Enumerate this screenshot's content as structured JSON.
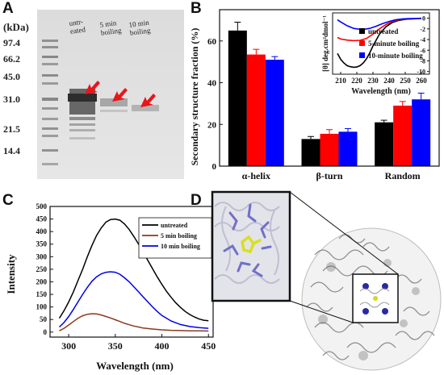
{
  "figure": {
    "panel_a": {
      "letter": "A",
      "unit_label": "(kDa)",
      "markers": [
        "97.4",
        "66.2",
        "45.0",
        "31.0",
        "21.5",
        "14.4"
      ],
      "lane_labels": [
        {
          "line1": "untr-",
          "line2": "eated"
        },
        {
          "line1": "5 min",
          "line2": "boiling"
        },
        {
          "line1": "10 min",
          "line2": "boiling"
        }
      ]
    },
    "panel_b": {
      "letter": "B"
    },
    "panel_c": {
      "letter": "C"
    },
    "panel_d": {
      "letter": "D"
    }
  },
  "chart_data": [
    {
      "type": "bar",
      "panel": "B",
      "categories": [
        "α-helix",
        "β-turn",
        "Random"
      ],
      "series": [
        {
          "name": "untreated",
          "values": [
            65,
            13,
            21
          ],
          "errors": [
            4,
            1.2,
            1
          ],
          "color": "#000000"
        },
        {
          "name": "5-minute boiling",
          "values": [
            53.5,
            15.5,
            29
          ],
          "errors": [
            2.5,
            2,
            2
          ],
          "color": "#ff0000"
        },
        {
          "name": "10-minute boiling",
          "values": [
            51,
            16.5,
            32
          ],
          "errors": [
            1.5,
            1.5,
            3
          ],
          "color": "#0000ff"
        }
      ],
      "ylabel": "Secondary structure fraction (%)",
      "ylim": [
        0,
        75
      ],
      "yticks": [
        0,
        20,
        40,
        60
      ],
      "inset": {
        "type": "line",
        "xlabel": "Wavelength (nm)",
        "ylabel": "[θ] deg.cm²dmol⁻¹",
        "xlim": [
          205,
          265
        ],
        "xticks": [
          210,
          220,
          230,
          240,
          250,
          260
        ],
        "ylim": [
          -10.5,
          1
        ],
        "yticks": [
          0,
          -2,
          -4,
          -6,
          -8,
          -10
        ],
        "series": [
          {
            "name": "untreated",
            "color": "#000000",
            "x": [
              208,
              210,
              212,
              214,
              216,
              218,
              220,
              222,
              224,
              226,
              228,
              230,
              234,
              238,
              242,
              246,
              250,
              255,
              260
            ],
            "y": [
              -6.6,
              -7.7,
              -8.4,
              -8.9,
              -9.1,
              -9.2,
              -9.15,
              -8.9,
              -8.4,
              -7.6,
              -6.5,
              -5.2,
              -3.0,
              -1.6,
              -0.8,
              -0.4,
              -0.2,
              -0.1,
              -0.05
            ]
          },
          {
            "name": "5-minute boiling",
            "color": "#ff0000",
            "x": [
              208,
              210,
              214,
              218,
              222,
              226,
              230,
              234,
              238,
              242,
              246,
              250,
              255,
              260
            ],
            "y": [
              -3.6,
              -3.9,
              -4.1,
              -4.2,
              -4.15,
              -3.8,
              -3.0,
              -2.0,
              -1.2,
              -0.6,
              -0.3,
              -0.15,
              -0.1,
              -0.05
            ]
          },
          {
            "name": "10-minute boiling",
            "color": "#0000ff",
            "x": [
              208,
              210,
              214,
              218,
              220,
              224,
              228,
              232,
              236,
              240,
              244,
              248,
              252,
              256,
              260
            ],
            "y": [
              -0.3,
              -0.7,
              -1.4,
              -1.9,
              -2.0,
              -2.1,
              -1.9,
              -1.5,
              -1.0,
              -0.6,
              -0.3,
              -0.15,
              -0.08,
              -0.04,
              -0.02
            ]
          }
        ]
      }
    },
    {
      "type": "line",
      "panel": "C",
      "xlabel": "Wavelength (nm)",
      "ylabel": "Intensity",
      "xlim": [
        280,
        455
      ],
      "xticks": [
        300,
        350,
        400,
        450
      ],
      "ylim": [
        -20,
        500
      ],
      "yticks": [
        0,
        50,
        100,
        150,
        200,
        250,
        300,
        350,
        400,
        450,
        500
      ],
      "series": [
        {
          "name": "untreated",
          "color": "#000000",
          "x": [
            290,
            295,
            300,
            305,
            310,
            315,
            320,
            325,
            330,
            335,
            340,
            345,
            350,
            355,
            360,
            365,
            370,
            375,
            380,
            385,
            390,
            395,
            400,
            405,
            410,
            415,
            420,
            425,
            430,
            435,
            440,
            445,
            450
          ],
          "y": [
            55,
            85,
            120,
            160,
            205,
            250,
            300,
            345,
            385,
            415,
            438,
            448,
            450,
            445,
            430,
            408,
            380,
            350,
            318,
            285,
            252,
            220,
            190,
            162,
            138,
            116,
            98,
            82,
            70,
            60,
            52,
            47,
            45
          ]
        },
        {
          "name": "5 min boiling",
          "color": "#8b3a1e",
          "x": [
            290,
            295,
            300,
            305,
            310,
            315,
            320,
            325,
            330,
            335,
            340,
            345,
            350,
            355,
            360,
            365,
            370,
            375,
            380,
            390,
            400,
            410,
            420,
            430,
            440,
            450
          ],
          "y": [
            5,
            15,
            28,
            42,
            55,
            65,
            71,
            73,
            72,
            68,
            62,
            56,
            49,
            42,
            35,
            29,
            24,
            20,
            16,
            12,
            9,
            7,
            6,
            5,
            5,
            4
          ]
        },
        {
          "name": "10 min boiling",
          "color": "#0000ee",
          "x": [
            290,
            295,
            300,
            305,
            310,
            315,
            320,
            325,
            330,
            335,
            340,
            345,
            350,
            355,
            360,
            365,
            370,
            375,
            380,
            385,
            390,
            395,
            400,
            410,
            420,
            430,
            440,
            450
          ],
          "y": [
            20,
            38,
            62,
            90,
            120,
            150,
            178,
            202,
            220,
            232,
            238,
            240,
            238,
            230,
            216,
            200,
            180,
            160,
            140,
            120,
            100,
            82,
            66,
            44,
            30,
            22,
            18,
            15
          ]
        }
      ]
    }
  ]
}
